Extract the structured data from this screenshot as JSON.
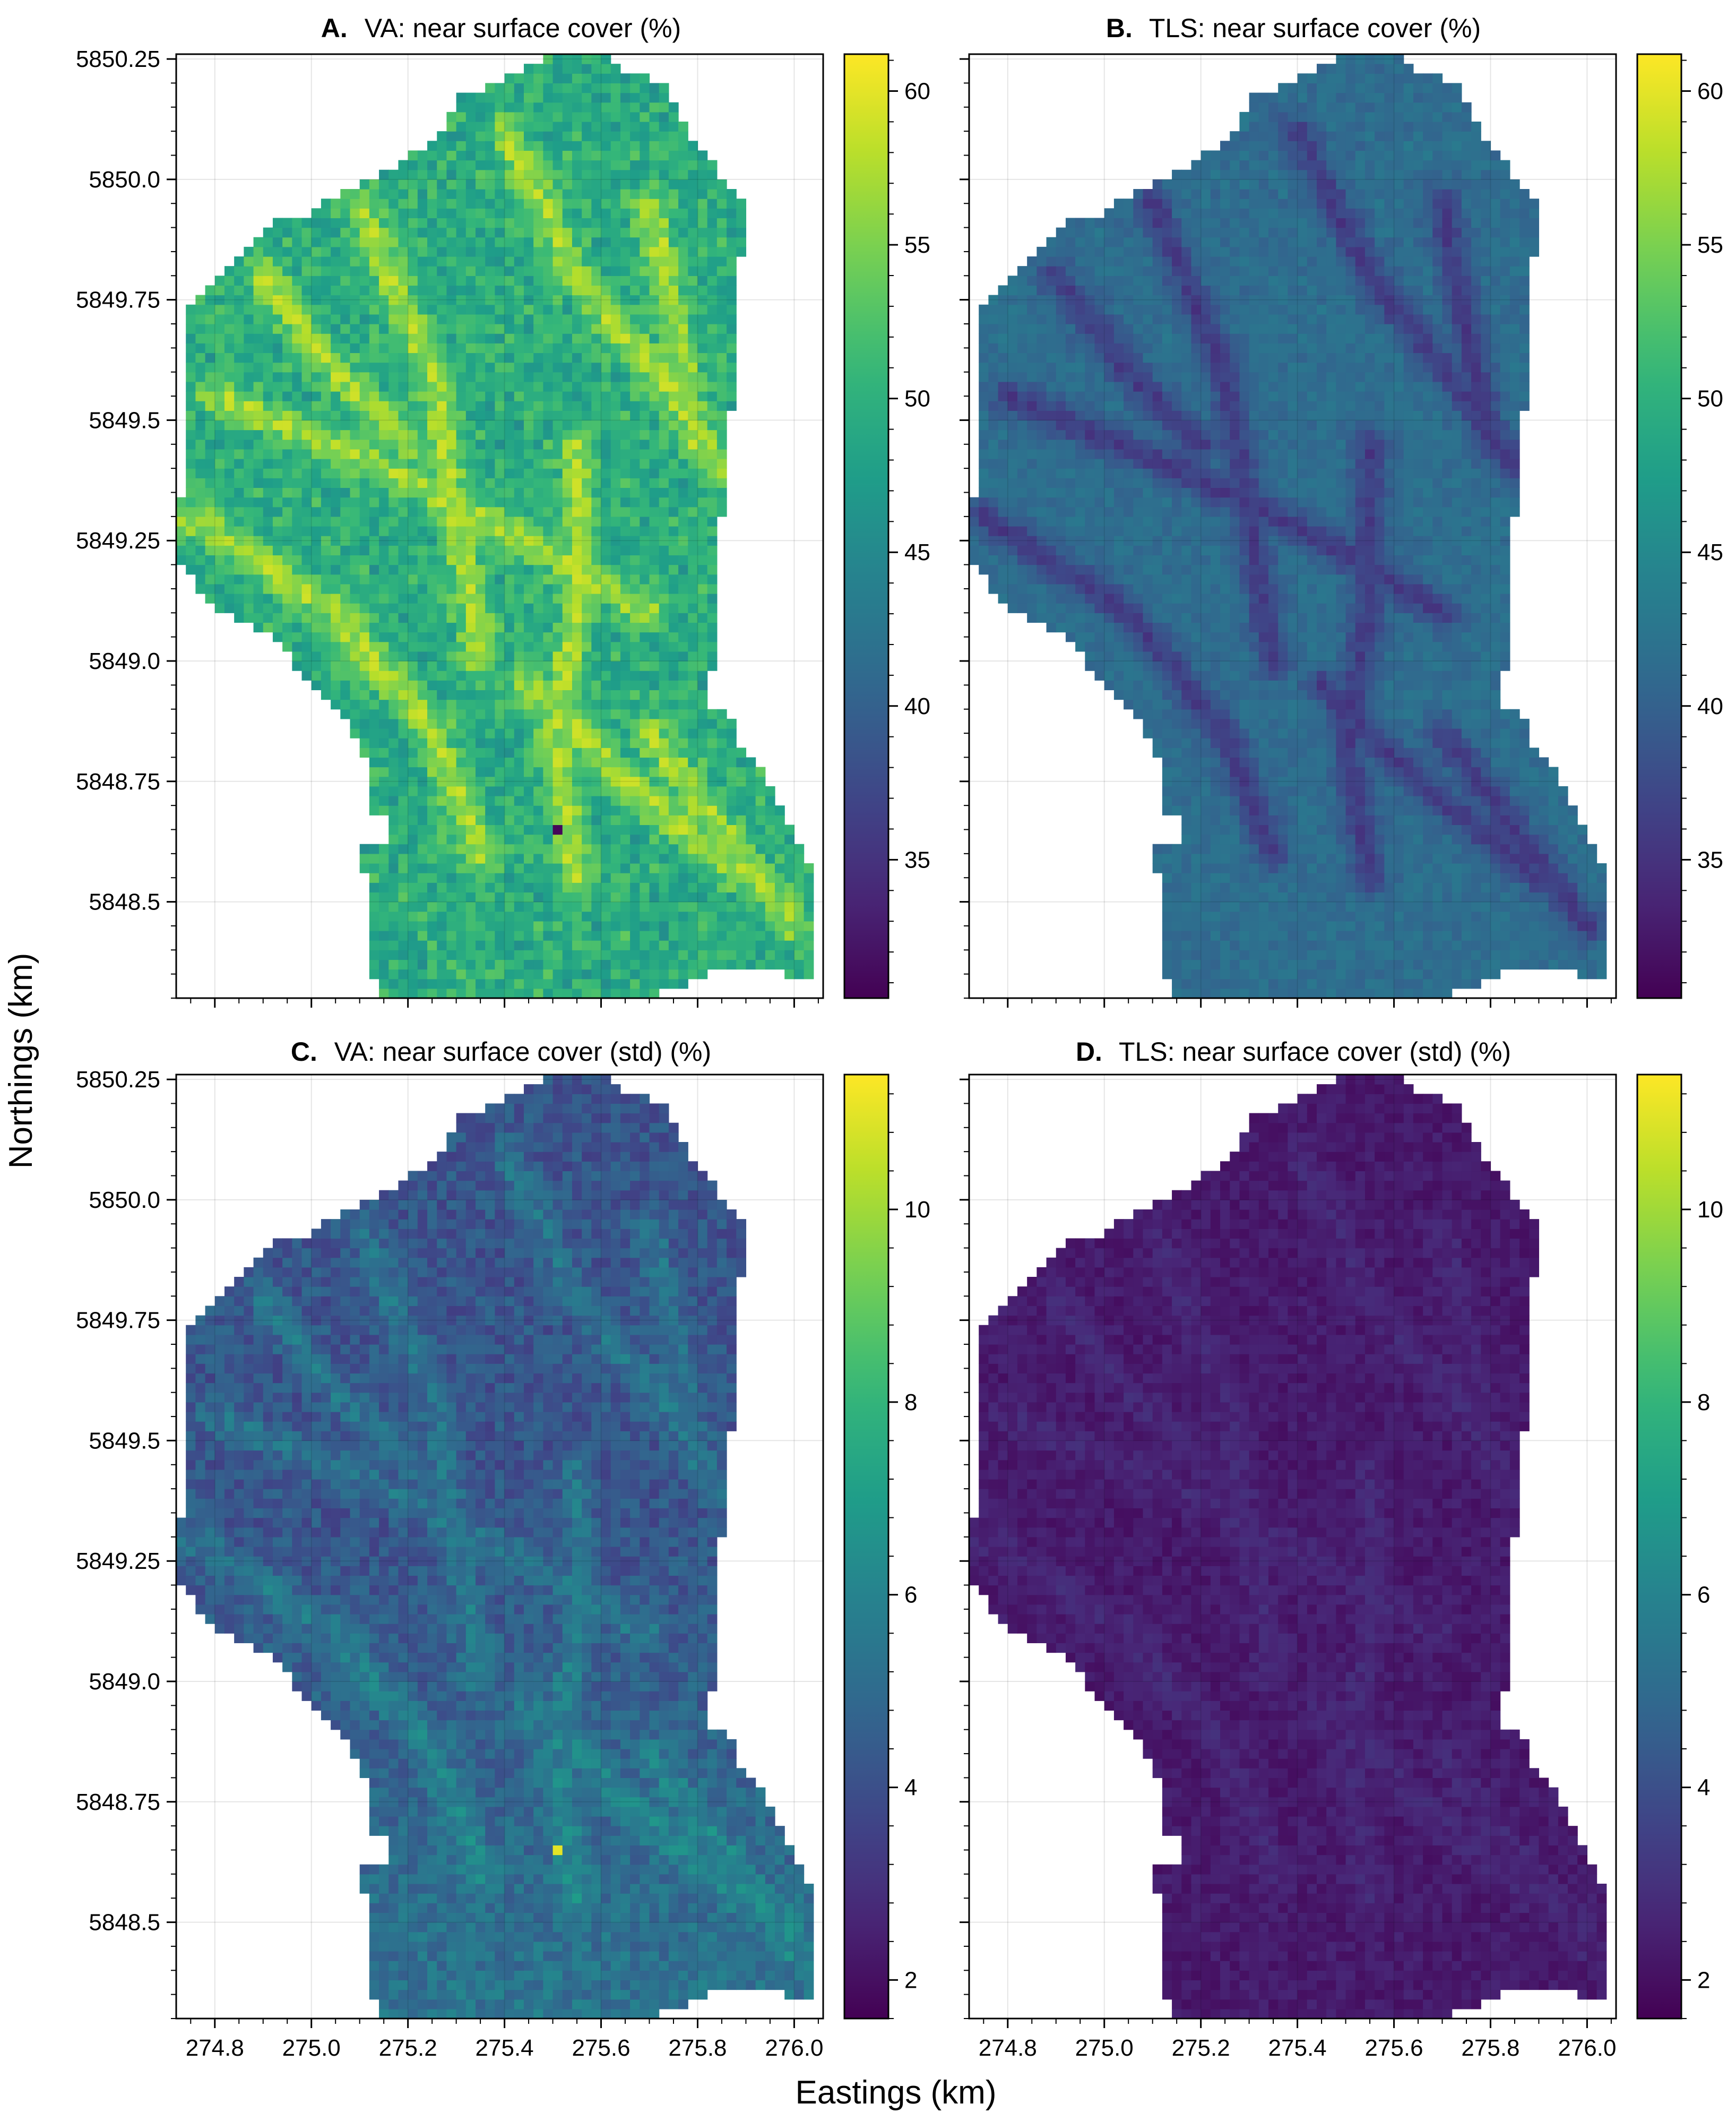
{
  "figure": {
    "ylabel": "Northings (km)",
    "xlabel": "Eastings (km)"
  },
  "colormap": {
    "name": "viridis",
    "stops": [
      "#440154",
      "#482878",
      "#3e4989",
      "#31688e",
      "#26828e",
      "#1f9e89",
      "#35b779",
      "#6ece58",
      "#b5de2b",
      "#fde725"
    ]
  },
  "chart_data": [
    {
      "type": "heatmap",
      "panel": "A.",
      "title": "VA: near surface cover (%)",
      "xlim": [
        274.72,
        276.06
      ],
      "ylim": [
        5848.3,
        5850.26
      ],
      "grid": true,
      "colorbar": {
        "range": [
          30.5,
          61.2
        ],
        "ticks": [
          35,
          40,
          45,
          50,
          55,
          60
        ]
      },
      "value_summary": {
        "typical_min": 42,
        "typical_max": 59,
        "typical_mean": 50,
        "outlier_min": 31
      },
      "show_x_tick_labels": false,
      "show_y_tick_labels": true
    },
    {
      "type": "heatmap",
      "panel": "B.",
      "title": "TLS: near surface cover (%)",
      "xlim": [
        274.72,
        276.06
      ],
      "ylim": [
        5848.3,
        5850.26
      ],
      "grid": true,
      "colorbar": {
        "range": [
          30.5,
          61.2
        ],
        "ticks": [
          35,
          40,
          45,
          50,
          55,
          60
        ]
      },
      "value_summary": {
        "typical_min": 33,
        "typical_max": 44,
        "typical_mean": 39
      },
      "show_x_tick_labels": false,
      "show_y_tick_labels": false
    },
    {
      "type": "heatmap",
      "panel": "C.",
      "title": "VA: near surface cover (std) (%)",
      "xlim": [
        274.72,
        276.06
      ],
      "ylim": [
        5848.3,
        5850.26
      ],
      "grid": true,
      "colorbar": {
        "range": [
          1.6,
          11.4
        ],
        "ticks": [
          2,
          4,
          6,
          8,
          10
        ]
      },
      "value_summary": {
        "typical_min": 3,
        "typical_max": 7,
        "typical_mean": 4.6,
        "outlier_max": 11
      },
      "show_x_tick_labels": true,
      "show_y_tick_labels": true
    },
    {
      "type": "heatmap",
      "panel": "D.",
      "title": "TLS: near surface cover (std) (%)",
      "xlim": [
        274.72,
        276.06
      ],
      "ylim": [
        5848.3,
        5850.26
      ],
      "grid": true,
      "colorbar": {
        "range": [
          1.6,
          11.4
        ],
        "ticks": [
          2,
          4,
          6,
          8,
          10
        ]
      },
      "value_summary": {
        "typical_min": 1.8,
        "typical_max": 3.2,
        "typical_mean": 2.3
      },
      "show_x_tick_labels": true,
      "show_y_tick_labels": false
    }
  ],
  "axes": {
    "x_ticks": [
      274.8,
      275.0,
      275.2,
      275.4,
      275.6,
      275.8,
      276.0
    ],
    "x_tick_labels": [
      "274.8",
      "275.0",
      "275.2",
      "275.4",
      "275.6",
      "275.8",
      "276.0"
    ],
    "y_ticks": [
      5848.5,
      5848.75,
      5849.0,
      5849.25,
      5849.5,
      5849.75,
      5850.0,
      5850.25
    ],
    "y_tick_labels": [
      "5848.5",
      "5848.75",
      "5849.0",
      "5849.25",
      "5849.5",
      "5849.75",
      "5850.0",
      "5850.25"
    ],
    "region_outline": [
      [
        275.15,
        5848.29
      ],
      [
        275.15,
        5848.33
      ],
      [
        275.13,
        5848.35
      ],
      [
        275.13,
        5848.56
      ],
      [
        275.11,
        5848.56
      ],
      [
        275.11,
        5848.63
      ],
      [
        275.17,
        5848.63
      ],
      [
        275.17,
        5848.69
      ],
      [
        275.13,
        5848.69
      ],
      [
        275.13,
        5848.77
      ],
      [
        275.09,
        5848.85
      ],
      [
        275.05,
        5848.9
      ],
      [
        275.01,
        5848.95
      ],
      [
        274.97,
        5848.99
      ],
      [
        274.93,
        5849.04
      ],
      [
        274.87,
        5849.08
      ],
      [
        274.82,
        5849.1
      ],
      [
        274.76,
        5849.15
      ],
      [
        274.76,
        5849.17
      ],
      [
        274.72,
        5849.21
      ],
      [
        274.72,
        5849.31
      ],
      [
        274.74,
        5849.35
      ],
      [
        274.74,
        5849.73
      ],
      [
        274.78,
        5849.76
      ],
      [
        274.82,
        5849.82
      ],
      [
        274.86,
        5849.86
      ],
      [
        274.89,
        5849.88
      ],
      [
        274.93,
        5849.91
      ],
      [
        275.0,
        5849.93
      ],
      [
        275.07,
        5849.98
      ],
      [
        275.13,
        5850.0
      ],
      [
        275.21,
        5850.05
      ],
      [
        275.25,
        5850.08
      ],
      [
        275.28,
        5850.12
      ],
      [
        275.31,
        5850.17
      ],
      [
        275.37,
        5850.2
      ],
      [
        275.43,
        5850.22
      ],
      [
        275.49,
        5850.26
      ],
      [
        275.61,
        5850.26
      ],
      [
        275.64,
        5850.23
      ],
      [
        275.73,
        5850.2
      ],
      [
        275.76,
        5850.13
      ],
      [
        275.79,
        5850.09
      ],
      [
        275.82,
        5850.04
      ],
      [
        275.87,
        5849.99
      ],
      [
        275.91,
        5849.95
      ],
      [
        275.91,
        5849.88
      ],
      [
        275.89,
        5849.84
      ],
      [
        275.89,
        5849.6
      ],
      [
        275.87,
        5849.52
      ],
      [
        275.87,
        5849.35
      ],
      [
        275.84,
        5849.27
      ],
      [
        275.84,
        5849.04
      ],
      [
        275.82,
        5848.91
      ],
      [
        275.86,
        5848.89
      ],
      [
        275.89,
        5848.86
      ],
      [
        275.89,
        5848.82
      ],
      [
        275.92,
        5848.79
      ],
      [
        275.95,
        5848.75
      ],
      [
        275.97,
        5848.71
      ],
      [
        275.98,
        5848.67
      ],
      [
        276.01,
        5848.63
      ],
      [
        276.03,
        5848.58
      ],
      [
        276.04,
        5848.51
      ],
      [
        276.05,
        5848.44
      ],
      [
        276.05,
        5848.34
      ],
      [
        276.02,
        5848.33
      ],
      [
        275.99,
        5848.35
      ],
      [
        275.95,
        5848.36
      ],
      [
        275.88,
        5848.36
      ],
      [
        275.82,
        5848.35
      ],
      [
        275.78,
        5848.33
      ],
      [
        275.74,
        5848.32
      ],
      [
        275.7,
        5848.3
      ],
      [
        275.63,
        5848.29
      ]
    ]
  }
}
